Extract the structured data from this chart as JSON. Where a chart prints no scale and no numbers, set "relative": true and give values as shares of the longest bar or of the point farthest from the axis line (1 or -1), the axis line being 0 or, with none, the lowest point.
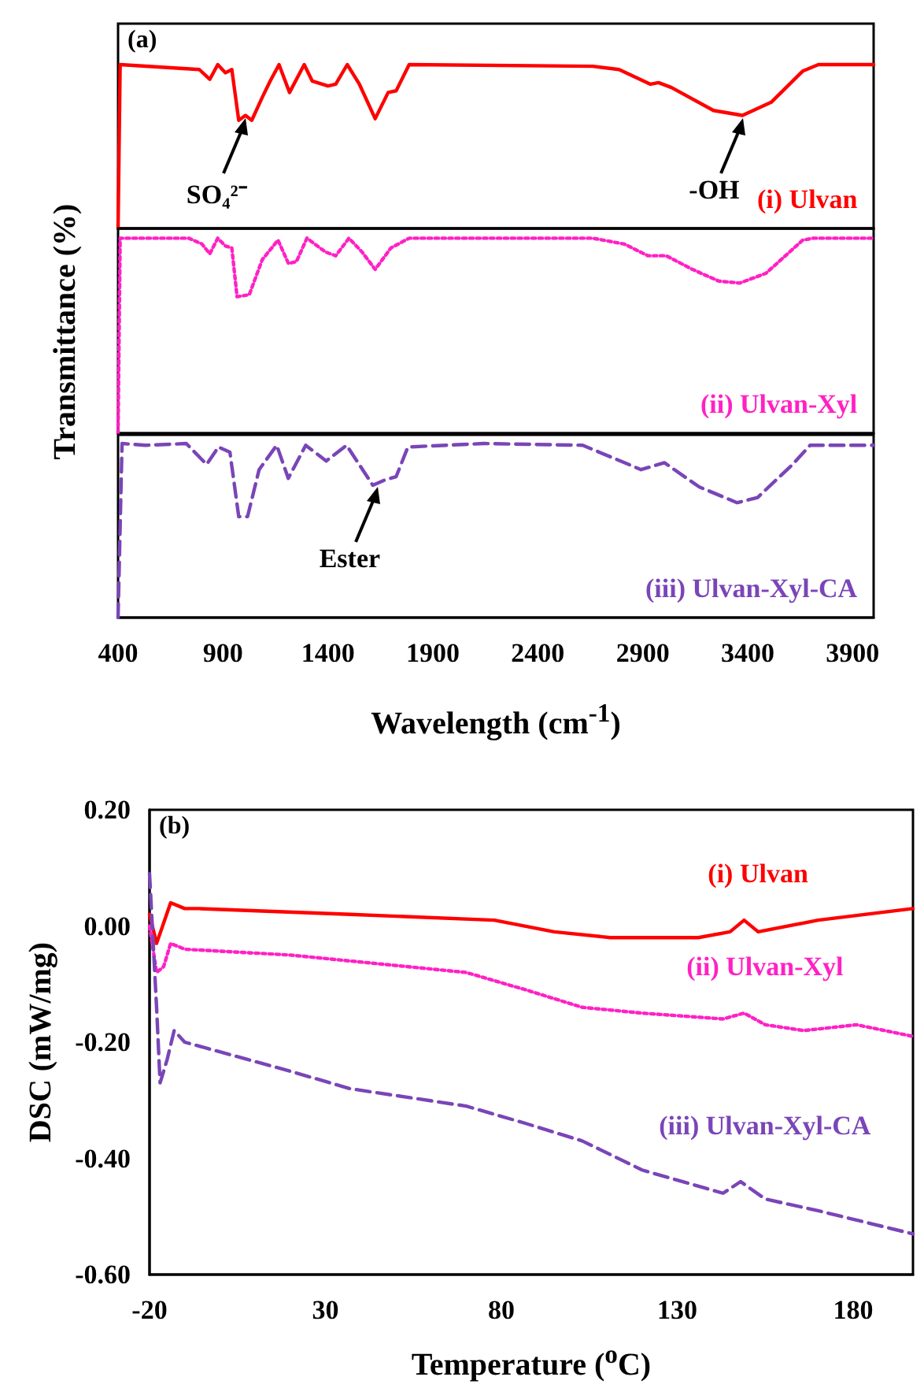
{
  "chart_data": [
    {
      "type": "line",
      "relative": true,
      "xlim": [
        400,
        4000
      ],
      "tick_labels": false,
      "annotations": [
        "(a)",
        {
          "text": "SO₄²⁻",
          "x": 1007,
          "y": 0.69
        },
        {
          "text": "-OH",
          "x": 3375,
          "y": 0.69
        }
      ],
      "series": [
        {
          "name": "(i) Ulvan",
          "color": "#ff0000",
          "line_style": "solid",
          "x": [
            400,
            410,
            787,
            837,
            875,
            912,
            942,
            975,
            1007,
            1037,
            1087,
            1125,
            1167,
            1217,
            1287,
            1325,
            1400,
            1437,
            1492,
            1550,
            1625,
            1687,
            1725,
            1787,
            2662,
            2787,
            2937,
            2975,
            3037,
            3237,
            3375,
            3512,
            3662,
            3737,
            4000
          ],
          "values": [
            0,
            1.0,
            0.97,
            0.91,
            1.0,
            0.95,
            0.97,
            0.66,
            0.69,
            0.66,
            0.8,
            0.9,
            1.0,
            0.83,
            1.0,
            0.9,
            0.87,
            0.88,
            1.0,
            0.88,
            0.67,
            0.83,
            0.84,
            1.0,
            0.99,
            0.97,
            0.88,
            0.89,
            0.86,
            0.72,
            0.69,
            0.77,
            0.96,
            1.0,
            1.0
          ]
        }
      ]
    },
    {
      "type": "line",
      "relative": true,
      "xlim": [
        400,
        4000
      ],
      "tick_labels": false,
      "ylabel": "Transmittance (%)",
      "series": [
        {
          "name": "(ii) Ulvan-Xyl",
          "color": "#ff21c4",
          "line_style": "dotted",
          "x": [
            400,
            410,
            737,
            800,
            837,
            875,
            912,
            942,
            967,
            1025,
            1087,
            1162,
            1212,
            1250,
            1300,
            1387,
            1437,
            1500,
            1562,
            1625,
            1700,
            1787,
            2662,
            2812,
            2925,
            3012,
            3137,
            3262,
            3362,
            3487,
            3662,
            3712,
            4000
          ],
          "values": [
            0,
            1.0,
            1.0,
            0.97,
            0.92,
            1.0,
            0.96,
            0.95,
            0.7,
            0.71,
            0.89,
            0.99,
            0.87,
            0.88,
            1.0,
            0.93,
            0.91,
            1.0,
            0.93,
            0.84,
            0.95,
            1.0,
            1.0,
            0.97,
            0.91,
            0.91,
            0.84,
            0.78,
            0.77,
            0.82,
            0.99,
            1.0,
            1.0
          ]
        }
      ]
    },
    {
      "type": "line",
      "relative": true,
      "xlim": [
        400,
        4000
      ],
      "xticks": [
        400,
        900,
        1400,
        1900,
        2400,
        2900,
        3400,
        3900
      ],
      "tick_labels": "x",
      "xlabel": "Wavelength (cm$^{-1}$)",
      "annotations": [
        {
          "text": "Ester",
          "x": 1640,
          "y": 0.77
        }
      ],
      "series": [
        {
          "name": "(iii) Ulvan-Xyl-CA",
          "color": "#7a45b8",
          "line_style": "dashed",
          "x": [
            400,
            419,
            531,
            725,
            822,
            878,
            933,
            975,
            1017,
            1072,
            1156,
            1211,
            1294,
            1392,
            1489,
            1614,
            1670,
            1725,
            1781,
            2142,
            2614,
            2892,
            3003,
            3170,
            3350,
            3447,
            3614,
            3697,
            4000
          ],
          "values": [
            0,
            1.0,
            0.99,
            1.0,
            0.88,
            0.98,
            0.95,
            0.58,
            0.58,
            0.85,
            0.99,
            0.8,
            0.99,
            0.9,
            0.99,
            0.76,
            0.79,
            0.81,
            0.98,
            1.0,
            0.99,
            0.85,
            0.89,
            0.75,
            0.66,
            0.69,
            0.88,
            0.99,
            0.99
          ]
        }
      ]
    },
    {
      "type": "line",
      "xlim": [
        -20,
        197
      ],
      "xticks": [
        -20,
        30,
        80,
        130,
        180
      ],
      "ylim": [
        -0.6,
        0.2
      ],
      "yticks": [
        {
          "value": -0.6,
          "label": "-0.60"
        },
        {
          "value": -0.4,
          "label": "-0.40"
        },
        {
          "value": -0.2,
          "label": "-0.20"
        },
        {
          "value": 0,
          "label": "0.00"
        },
        {
          "value": 0.2,
          "label": "0.20"
        }
      ],
      "xlabel": "Temperature ($^{o}$C)",
      "ylabel": "DSC (mW/mg)",
      "annotations": [
        "(b)"
      ],
      "series": [
        {
          "name": "(i) Ulvan",
          "color": "#ff0000",
          "line_style": "solid",
          "x": [
            -20,
            -18,
            -14,
            -10,
            -6,
            37,
            78,
            95,
            111,
            120,
            136,
            145,
            149,
            153,
            170,
            197
          ],
          "values": [
            0.02,
            -0.03,
            0.04,
            0.03,
            0.03,
            0.02,
            0.01,
            -0.01,
            -0.02,
            -0.02,
            -0.02,
            -0.01,
            0.01,
            -0.01,
            0.01,
            0.03
          ]
        },
        {
          "name": "(ii) Ulvan-Xyl",
          "color": "#ff21c4",
          "line_style": "dotted",
          "x": [
            -20,
            -18,
            -16,
            -14,
            -10,
            20,
            70,
            87,
            103,
            120,
            143,
            149,
            155,
            166,
            181,
            197
          ],
          "values": [
            0.0,
            -0.08,
            -0.07,
            -0.03,
            -0.04,
            -0.05,
            -0.08,
            -0.11,
            -0.14,
            -0.15,
            -0.16,
            -0.15,
            -0.17,
            -0.18,
            -0.17,
            -0.19
          ]
        },
        {
          "name": "(iii) Ulvan-Xyl-CA",
          "color": "#7a45b8",
          "line_style": "dashed",
          "x": [
            -20,
            -18,
            -17,
            -15,
            -13,
            -10,
            20,
            37,
            70,
            87,
            103,
            120,
            143,
            148,
            155,
            170,
            197
          ],
          "values": [
            0.09,
            -0.14,
            -0.27,
            -0.23,
            -0.18,
            -0.2,
            -0.25,
            -0.28,
            -0.31,
            -0.34,
            -0.37,
            -0.42,
            -0.46,
            -0.44,
            -0.47,
            -0.49,
            -0.53
          ]
        }
      ]
    }
  ]
}
